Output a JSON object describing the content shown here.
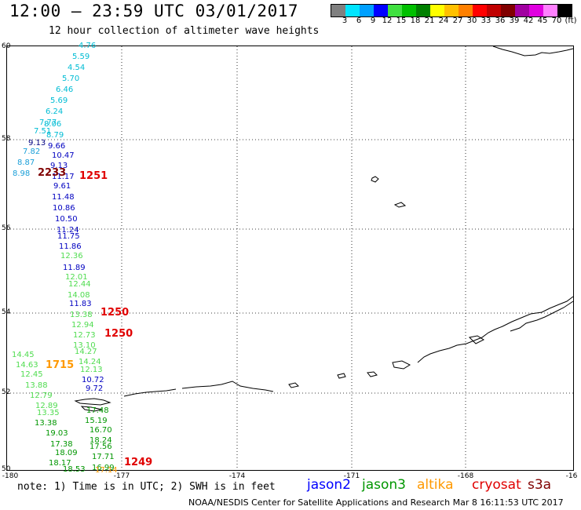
{
  "title": "12:00 – 23:59 UTC 03/01/2017",
  "subtitle": "12 hour collection of altimeter wave heights",
  "legend": {
    "labels": [
      "3",
      "6",
      "9",
      "12",
      "15",
      "18",
      "21",
      "24",
      "27",
      "30",
      "33",
      "36",
      "39",
      "42",
      "45",
      "70",
      "(ft)"
    ],
    "colors": [
      "#808080",
      "#00e5ff",
      "#00a0ff",
      "#0000ff",
      "#40e040",
      "#00c000",
      "#008000",
      "#ffff00",
      "#ffc000",
      "#ff8000",
      "#ff0000",
      "#c00000",
      "#800000",
      "#a000a0",
      "#e000e0",
      "#ff80ff",
      "#000000"
    ]
  },
  "map": {
    "lat_labels": [
      "60",
      "58",
      "56",
      "54",
      "52",
      "50"
    ],
    "lon_labels": [
      "-180",
      "-177",
      "-174",
      "-171",
      "-168",
      "-16"
    ]
  },
  "observations": [
    {
      "v": "4.76",
      "c": "#00bcd4"
    },
    {
      "v": "5.59",
      "c": "#00bcd4"
    },
    {
      "v": "4.54",
      "c": "#00bcd4"
    },
    {
      "v": "5.70",
      "c": "#00bcd4"
    },
    {
      "v": "6.46",
      "c": "#00bcd4"
    },
    {
      "v": "5.69",
      "c": "#00bcd4"
    },
    {
      "v": "6.24",
      "c": "#00bcd4"
    },
    {
      "v": "7.77",
      "c": "#00bcd4"
    },
    {
      "v": "8.06",
      "c": "#00bcd4"
    },
    {
      "v": "7.51",
      "c": "#00bcd4"
    },
    {
      "v": "8.79",
      "c": "#00bcd4"
    },
    {
      "v": "9.13",
      "c": "#000080"
    },
    {
      "v": "9.66",
      "c": "#0000c0"
    },
    {
      "v": "7.82",
      "c": "#1a9fd8"
    },
    {
      "v": "10.47",
      "c": "#0000c0"
    },
    {
      "v": "8.87",
      "c": "#1a9fd8"
    },
    {
      "v": "9.13",
      "c": "#0000c0"
    },
    {
      "v": "8.98",
      "c": "#1a9fd8"
    },
    {
      "v": "11.17",
      "c": "#0000c0"
    },
    {
      "v": "9.61",
      "c": "#0000c0"
    },
    {
      "v": "11.48",
      "c": "#0000c0"
    },
    {
      "v": "10.86",
      "c": "#0000c0"
    },
    {
      "v": "10.50",
      "c": "#0000c0"
    },
    {
      "v": "11.24",
      "c": "#0000c0"
    },
    {
      "v": "11.75",
      "c": "#0000c0"
    },
    {
      "v": "11.86",
      "c": "#0000c0"
    },
    {
      "v": "12.36",
      "c": "#50dc50"
    },
    {
      "v": "11.89",
      "c": "#0000c0"
    },
    {
      "v": "12.01",
      "c": "#50dc50"
    },
    {
      "v": "12.44",
      "c": "#50dc50"
    },
    {
      "v": "14.08",
      "c": "#50dc50"
    },
    {
      "v": "11.83",
      "c": "#0000c0"
    },
    {
      "v": "13.38",
      "c": "#50dc50"
    },
    {
      "v": "12.94",
      "c": "#50dc50"
    },
    {
      "v": "12.73",
      "c": "#50dc50"
    },
    {
      "v": "13.10",
      "c": "#50dc50"
    },
    {
      "v": "14.27",
      "c": "#50dc50"
    },
    {
      "v": "14.45",
      "c": "#50dc50"
    },
    {
      "v": "14.24",
      "c": "#50dc50"
    },
    {
      "v": "14.63",
      "c": "#50dc50"
    },
    {
      "v": "12.13",
      "c": "#50dc50"
    },
    {
      "v": "12.45",
      "c": "#50dc50"
    },
    {
      "v": "10.72",
      "c": "#0000c0"
    },
    {
      "v": "13.88",
      "c": "#50dc50"
    },
    {
      "v": "9.72",
      "c": "#0000c0"
    },
    {
      "v": "12.79",
      "c": "#50dc50"
    },
    {
      "v": "12.89",
      "c": "#50dc50"
    },
    {
      "v": "17.48",
      "c": "#009600"
    },
    {
      "v": "13.35",
      "c": "#50dc50"
    },
    {
      "v": "15.19",
      "c": "#009600"
    },
    {
      "v": "13.38",
      "c": "#009600"
    },
    {
      "v": "16.70",
      "c": "#009600"
    },
    {
      "v": "19.03",
      "c": "#009600"
    },
    {
      "v": "18.24",
      "c": "#009600"
    },
    {
      "v": "17.38",
      "c": "#009600"
    },
    {
      "v": "17.56",
      "c": "#009600"
    },
    {
      "v": "18.09",
      "c": "#009600"
    },
    {
      "v": "17.71",
      "c": "#009600"
    },
    {
      "v": "18.17",
      "c": "#009600"
    },
    {
      "v": "16.99",
      "c": "#009600"
    },
    {
      "v": "18.53",
      "c": "#009600"
    },
    {
      "v": "17.14",
      "c": "#ff9900"
    }
  ],
  "time_labels": [
    {
      "v": "2233",
      "c": "#800000"
    },
    {
      "v": "1251",
      "c": "#e00000"
    },
    {
      "v": "1250",
      "c": "#e00000"
    },
    {
      "v": "1250",
      "c": "#e00000"
    },
    {
      "v": "1715",
      "c": "#ff9900"
    },
    {
      "v": "1249",
      "c": "#e00000"
    }
  ],
  "note": "note: 1) Time is in UTC; 2) SWH is in feet",
  "satellites": [
    {
      "name": "jason2",
      "c": "#0000ff"
    },
    {
      "name": "jason3",
      "c": "#009600"
    },
    {
      "name": "altika",
      "c": "#ff9900"
    },
    {
      "name": "cryosat",
      "c": "#e00000"
    },
    {
      "name": "s3a",
      "c": "#800000"
    }
  ],
  "footer": "NOAA/NESDIS Center for Satellite Applications and Research   Mar  8 16:11:53 UTC 2017"
}
